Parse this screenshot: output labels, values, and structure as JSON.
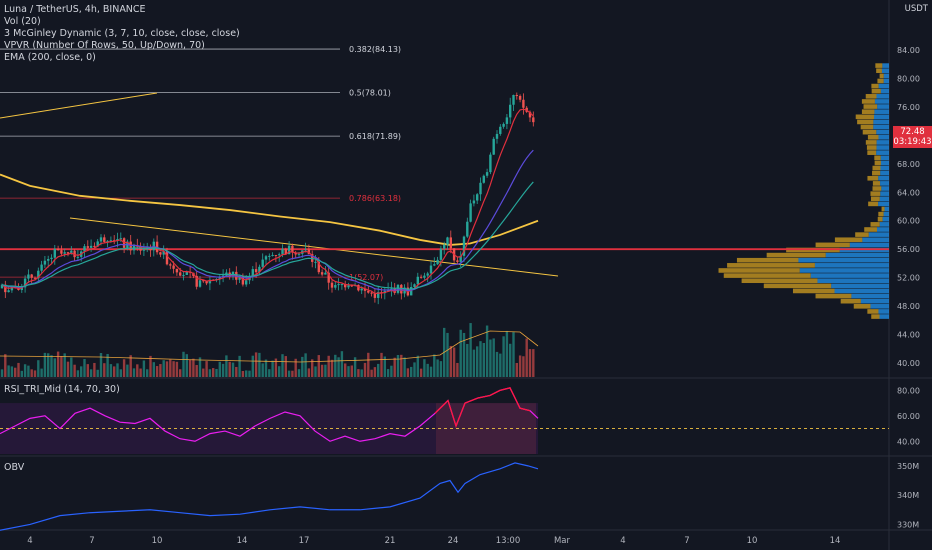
{
  "header": {
    "title": "Luna / TetherUS, 4h, BINANCE",
    "indicators": [
      "Vol (20)",
      "3 McGinley Dynamic (3, 7, 10, close, close, close)",
      "VPVR (Number Of Rows, 50, Up/Down, 70)",
      "EMA (200, close, 0)"
    ],
    "currency": "USDT"
  },
  "last_price": {
    "value": "72.48",
    "countdown": "03:19:43"
  },
  "rsi_label": "RSI_TRI_Mid (14, 70, 30)",
  "obv_label": "OBV",
  "colors": {
    "background": "#131722",
    "up": "#26a69a",
    "down": "#ef5350",
    "ema": "#f5c542",
    "red_line": "#e0303e",
    "rsi": "#e91ef0",
    "obv": "#2962ff",
    "vpvr_up": "#2196f3",
    "vpvr_down": "#d4a020"
  },
  "chart_data": [
    {
      "type": "candlestick",
      "title": "Luna / TetherUS, 4h, BINANCE",
      "y_ticks": [
        "84.00",
        "80.00",
        "76.00",
        "72.00",
        "68.00",
        "64.00",
        "60.00",
        "56.00",
        "52.00",
        "48.00",
        "44.00",
        "40.00"
      ],
      "x_ticks": [
        "4",
        "7",
        "10",
        "14",
        "17",
        "21",
        "24",
        "13:00",
        "Mar",
        "4",
        "7",
        "10",
        "14"
      ],
      "fib_levels": [
        {
          "label": "0.382(84.13)",
          "value": 84.13
        },
        {
          "label": "0.5(78.01)",
          "value": 78.01
        },
        {
          "label": "0.618(71.89)",
          "value": 71.89
        },
        {
          "label": "0.786(63.18)",
          "value": 63.18
        },
        {
          "label": "1(52.07)",
          "value": 52.07
        }
      ],
      "horizontal_level": 56.0,
      "ema200": [
        [
          0,
          66.5
        ],
        [
          30,
          64.9
        ],
        [
          80,
          63.5
        ],
        [
          130,
          62.8
        ],
        [
          180,
          62.2
        ],
        [
          230,
          61.5
        ],
        [
          280,
          60.6
        ],
        [
          330,
          59.8
        ],
        [
          380,
          58.6
        ],
        [
          420,
          57.3
        ],
        [
          450,
          56.6
        ],
        [
          470,
          56.8
        ],
        [
          500,
          58.0
        ],
        [
          538,
          60.0
        ]
      ],
      "close_anchors": [
        [
          0,
          50.5
        ],
        [
          20,
          51.0
        ],
        [
          40,
          53.0
        ],
        [
          55,
          55.5
        ],
        [
          70,
          55.0
        ],
        [
          90,
          56.5
        ],
        [
          110,
          58.0
        ],
        [
          125,
          56.5
        ],
        [
          140,
          56.0
        ],
        [
          155,
          56.5
        ],
        [
          170,
          54.0
        ],
        [
          185,
          52.5
        ],
        [
          200,
          51.0
        ],
        [
          215,
          52.0
        ],
        [
          230,
          52.5
        ],
        [
          245,
          51.5
        ],
        [
          260,
          54.0
        ],
        [
          275,
          55.5
        ],
        [
          290,
          56.0
        ],
        [
          305,
          55.8
        ],
        [
          320,
          53.0
        ],
        [
          335,
          50.5
        ],
        [
          350,
          51.5
        ],
        [
          365,
          50.0
        ],
        [
          380,
          49.5
        ],
        [
          395,
          50.5
        ],
        [
          410,
          50.0
        ],
        [
          420,
          52.0
        ],
        [
          435,
          54.5
        ],
        [
          448,
          57.5
        ],
        [
          456,
          53.0
        ],
        [
          462,
          56.0
        ],
        [
          470,
          62.0
        ],
        [
          478,
          64.0
        ],
        [
          485,
          66.0
        ],
        [
          492,
          71.0
        ],
        [
          500,
          73.5
        ],
        [
          507,
          75.0
        ],
        [
          513,
          77.5
        ],
        [
          520,
          76.5
        ],
        [
          528,
          75.0
        ],
        [
          538,
          72.5
        ]
      ]
    },
    {
      "type": "line",
      "title": "RSI_TRI_Mid (14, 70, 30)",
      "y_ticks": [
        "80.00",
        "60.00",
        "40.00"
      ],
      "ylim": [
        30,
        85
      ],
      "series": [
        {
          "name": "RSI_TRI_Mid",
          "values": [
            [
              0,
              46
            ],
            [
              15,
              52
            ],
            [
              30,
              58
            ],
            [
              45,
              60
            ],
            [
              60,
              50
            ],
            [
              75,
              62
            ],
            [
              90,
              66
            ],
            [
              105,
              60
            ],
            [
              120,
              55
            ],
            [
              135,
              54
            ],
            [
              150,
              58
            ],
            [
              165,
              48
            ],
            [
              180,
              42
            ],
            [
              195,
              40
            ],
            [
              210,
              46
            ],
            [
              225,
              48
            ],
            [
              240,
              44
            ],
            [
              255,
              52
            ],
            [
              270,
              58
            ],
            [
              285,
              63
            ],
            [
              300,
              60
            ],
            [
              315,
              48
            ],
            [
              330,
              40
            ],
            [
              345,
              44
            ],
            [
              360,
              40
            ],
            [
              375,
              42
            ],
            [
              390,
              46
            ],
            [
              405,
              44
            ],
            [
              420,
              52
            ],
            [
              435,
              62
            ],
            [
              448,
              72
            ],
            [
              456,
              52
            ],
            [
              465,
              70
            ],
            [
              478,
              74
            ],
            [
              490,
              76
            ],
            [
              500,
              80
            ],
            [
              510,
              82
            ],
            [
              520,
              66
            ],
            [
              530,
              64
            ],
            [
              538,
              58
            ]
          ]
        }
      ]
    },
    {
      "type": "line",
      "title": "OBV",
      "y_ticks": [
        "350M",
        "340M",
        "330M"
      ],
      "ylim": [
        324,
        352
      ],
      "series": [
        {
          "name": "OBV",
          "values": [
            [
              0,
              328
            ],
            [
              30,
              330
            ],
            [
              60,
              333
            ],
            [
              90,
              334
            ],
            [
              120,
              334.5
            ],
            [
              150,
              335
            ],
            [
              180,
              334
            ],
            [
              210,
              333
            ],
            [
              240,
              333.5
            ],
            [
              270,
              335
            ],
            [
              300,
              336
            ],
            [
              330,
              335
            ],
            [
              360,
              335
            ],
            [
              390,
              336
            ],
            [
              420,
              339
            ],
            [
              440,
              344
            ],
            [
              450,
              345
            ],
            [
              458,
              341
            ],
            [
              465,
              344
            ],
            [
              480,
              347
            ],
            [
              500,
              349
            ],
            [
              515,
              351
            ],
            [
              528,
              350
            ],
            [
              538,
              349
            ]
          ]
        }
      ]
    }
  ]
}
